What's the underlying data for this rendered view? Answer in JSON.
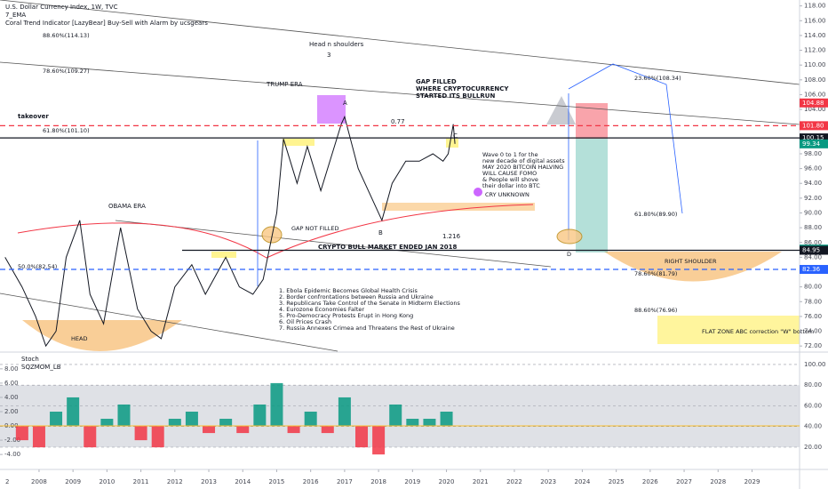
{
  "header": {
    "symbol": "U.S. Dollar Currency Index, 1W, TVC",
    "ema": "7_EMA",
    "indicator": "Coral Trend Indicator [LazyBear] Buy-Sell with Alarm by ucsgears"
  },
  "chart_data": [
    {
      "type": "line",
      "color": "#131722",
      "x": [
        2007.0,
        2007.5,
        2007.9,
        2008.2,
        2008.5,
        2008.8,
        2009.2,
        2009.5,
        2009.9,
        2010.4,
        2010.9,
        2011.3,
        2011.6,
        2012.0,
        2012.5,
        2012.9,
        2013.5,
        2013.9,
        2014.3,
        2014.6,
        2015.0,
        2015.2,
        2015.6,
        2015.9,
        2016.3,
        2016.9,
        2017.0,
        2017.4,
        2017.8,
        2018.1,
        2018.4,
        2018.8,
        2019.2,
        2019.6,
        2019.9,
        2020.05,
        2020.2,
        2020.25
      ],
      "values": [
        84,
        80,
        76,
        72,
        74,
        84,
        89,
        79,
        75,
        88,
        77,
        74,
        73,
        80,
        83,
        79,
        84,
        80,
        79,
        81,
        90,
        100,
        94,
        99,
        93,
        102,
        103,
        96,
        92,
        89,
        94,
        97,
        97,
        98,
        97,
        98,
        102,
        99.34
      ],
      "xlim": [
        2006.85,
        2030.4
      ],
      "xticks": [
        2008,
        2009,
        2010,
        2011,
        2012,
        2013,
        2014,
        2015,
        2016,
        2017,
        2018,
        2019,
        2020,
        2021,
        2022,
        2023,
        2024,
        2025,
        2026,
        2027,
        2028,
        2029
      ],
      "ylim": [
        71.3,
        118.8
      ],
      "yticks": [
        {
          "value": 72,
          "label": "72.00"
        },
        {
          "value": 74,
          "label": "74.00"
        },
        {
          "value": 76,
          "label": "76.00"
        },
        {
          "value": 78,
          "label": "78.00"
        },
        {
          "value": 80,
          "label": "80.00"
        },
        {
          "value": 82,
          "label": "82.00"
        },
        {
          "value": 84,
          "label": "84.00"
        },
        {
          "value": 86,
          "label": "86.00"
        },
        {
          "value": 88,
          "label": "88.00"
        },
        {
          "value": 90,
          "label": "90.00"
        },
        {
          "value": 92,
          "label": "92.00"
        },
        {
          "value": 94,
          "label": "94.00"
        },
        {
          "value": 96,
          "label": "96.00"
        },
        {
          "value": 98,
          "label": "98.00"
        },
        {
          "value": 100,
          "label": "100.00"
        },
        {
          "value": 102,
          "label": "102.00"
        },
        {
          "value": 104,
          "label": "104.00"
        },
        {
          "value": 106,
          "label": "106.00"
        },
        {
          "value": 108,
          "label": "108.00"
        },
        {
          "value": 110,
          "label": "110.00"
        },
        {
          "value": 112,
          "label": "112.00"
        },
        {
          "value": 114,
          "label": "114.00"
        },
        {
          "value": 116,
          "label": "116.00"
        },
        {
          "value": 118,
          "label": "118.00"
        }
      ],
      "price_tags": [
        {
          "value": 104.88,
          "color": "#f23645",
          "line": "none"
        },
        {
          "value": 101.8,
          "label": "101.80",
          "color": "#f23645",
          "line": "dashed"
        },
        {
          "value": 100.15,
          "color": "#131722",
          "line": "solid"
        },
        {
          "value": 99.34,
          "color": "#089981",
          "line": "none"
        },
        {
          "value": 85.11,
          "color": "#089981",
          "line": "none"
        },
        {
          "value": 84.95,
          "color": "#131722",
          "line": "solid"
        },
        {
          "value": 82.36,
          "color": "#2962ff",
          "line": "dashed"
        }
      ]
    },
    {
      "type": "bar",
      "title": "SQZMOM_LB",
      "subtitle": "Stoch",
      "up_color": "#089981",
      "down_color": "#f23645",
      "x": [
        2007.5,
        2008.0,
        2008.5,
        2009.0,
        2009.5,
        2010.0,
        2010.5,
        2011.0,
        2011.5,
        2012.0,
        2012.5,
        2013.0,
        2013.5,
        2014.0,
        2014.5,
        2015.0,
        2015.5,
        2016.0,
        2016.5,
        2017.0,
        2017.5,
        2018.0,
        2018.5,
        2019.0,
        2019.5,
        2020.0
      ],
      "values": [
        -2,
        -3,
        2,
        4,
        -3,
        1,
        3,
        -2,
        -3,
        1,
        2,
        -1,
        1,
        -1,
        3,
        6,
        -1,
        2,
        -1,
        4,
        -3,
        -4,
        3,
        1,
        1,
        2
      ],
      "ylim": [
        -6.1,
        10.1
      ],
      "yticks": [
        {
          "value": -4,
          "label": "-4.00"
        },
        {
          "value": -2,
          "label": "-2.00"
        },
        {
          "value": 0,
          "label": "0.00"
        },
        {
          "value": 2,
          "label": "2.00"
        },
        {
          "value": 4,
          "label": "4.00"
        },
        {
          "value": 6,
          "label": "6.00"
        },
        {
          "value": 8,
          "label": "8.00"
        }
      ],
      "y2lim": [
        -1.5,
        110.3
      ],
      "y2ticks": [
        {
          "value": 20,
          "label": "20.00"
        },
        {
          "value": 40,
          "label": "40.00"
        },
        {
          "value": 60,
          "label": "60.00"
        },
        {
          "value": 80,
          "label": "80.00"
        },
        {
          "value": 100,
          "label": "100.00"
        }
      ]
    }
  ],
  "annotations": {
    "takeover": "takeover",
    "fib_886_top": "88.60%(114.13)",
    "fib_786_top": "78.60%(109.27)",
    "fib_618_top": "61.80%(101.10)",
    "fib_50_left": "50.0%(82.54)",
    "obama": "OBAMA ERA",
    "trump": "TRUMP ERA",
    "hns": "Head n shoulders",
    "three": "3",
    "a": "A",
    "b": "B",
    "c": "C",
    "gap_filled": [
      "GAP FILLED",
      "WHERE CRYPTOCURRENCY",
      "STARTED ITS BULLRUN"
    ],
    "ratio_a": "0.77",
    "ratio_b": "1.216",
    "crypto_end": "CRYPTO BULL MARKET ENDED JAN 2018",
    "wave": [
      "Wave 0 to 1 for the",
      "new decade of digital assets",
      "MAY 2020 BITCOIN HALVING",
      "WILL CAUSE FOMO",
      "& People will shove",
      "their dollar into BTC"
    ],
    "cry": "CRY UNKNOWN",
    "gap_not": "GAP NOT FILLED",
    "head": "HEAD",
    "right_shoulder": "RIGHT SHOULDER",
    "flat": "FLAT ZONE ABC correction \"W\" bottom",
    "fib_236_r": "23.60%(108.34)",
    "fib_618_r": "61.80%(89.90)",
    "fib_786_r": "78.60%(81.79)",
    "fib_886_r": "88.60%(76.96)",
    "d": "D"
  },
  "events": [
    "1. Ebola Epidemic Becomes Global Health Crisis",
    "2. Border confrontations between Russia and Ukraine",
    "3. Republicans Take Control of the Senate in Midterm Elections",
    "4. Eurozone Economies Falter",
    "5. Pro-Democracy Protests Erupt in Hong Kong",
    "6. Oil Prices Crash",
    "7. Russia Annexes Crimea and Threatens the Rest of Ukraine"
  ],
  "footer": {
    "corner": "2"
  }
}
